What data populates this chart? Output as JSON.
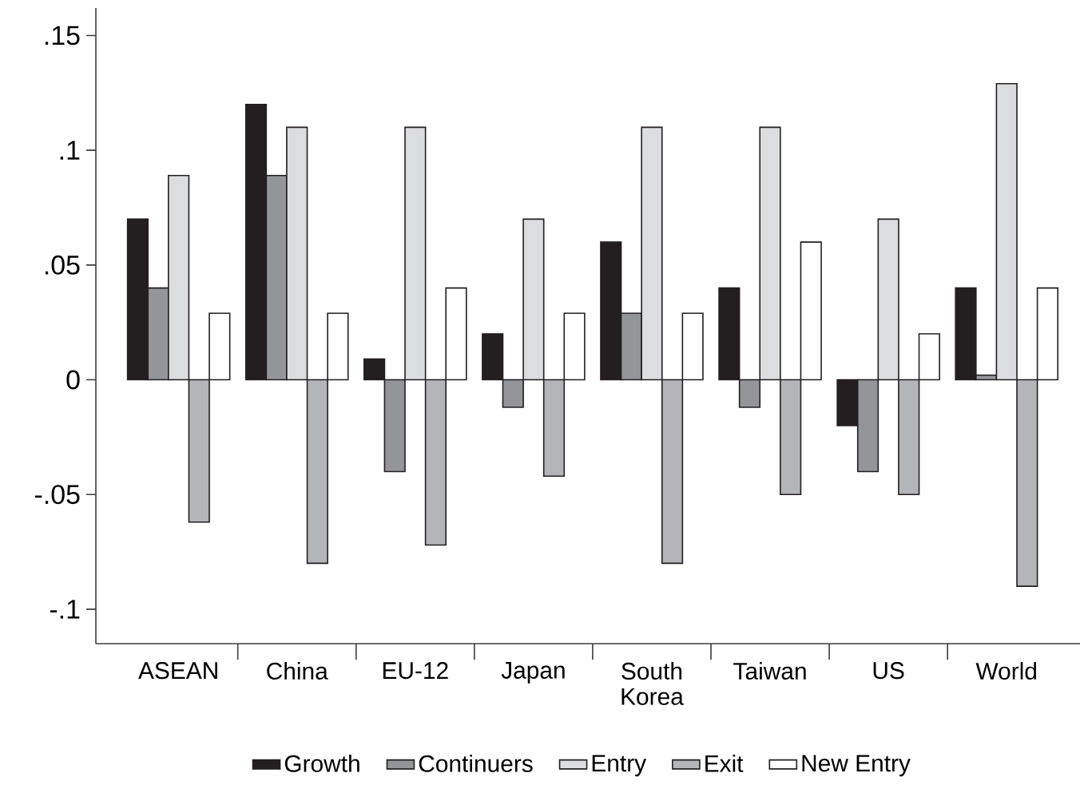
{
  "chart_data": {
    "type": "bar",
    "categories": [
      "ASEAN",
      "China",
      "EU-12",
      "Japan",
      "South Korea",
      "Taiwan",
      "US",
      "World"
    ],
    "series": [
      {
        "name": "Growth",
        "color": "#231f20",
        "values": [
          0.07,
          0.12,
          0.009,
          0.02,
          0.06,
          0.04,
          -0.02,
          0.04
        ]
      },
      {
        "name": "Continuers",
        "color": "#939598",
        "values": [
          0.04,
          0.089,
          -0.04,
          -0.012,
          0.029,
          -0.012,
          -0.04,
          0.002
        ]
      },
      {
        "name": "Entry",
        "color": "#dcdddf",
        "values": [
          0.089,
          0.11,
          0.11,
          0.07,
          0.11,
          0.11,
          0.07,
          0.129
        ]
      },
      {
        "name": "Exit",
        "color": "#b4b5b8",
        "values": [
          -0.062,
          -0.08,
          -0.072,
          -0.042,
          -0.08,
          -0.05,
          -0.05,
          -0.09
        ]
      },
      {
        "name": "New Entry",
        "color": "#ffffff",
        "values": [
          0.029,
          0.029,
          0.04,
          0.029,
          0.029,
          0.06,
          0.02,
          0.04
        ]
      }
    ],
    "ylim": [
      -0.115,
      0.162
    ],
    "yticks": [
      {
        "value": -0.1,
        "label": "-.1"
      },
      {
        "value": -0.05,
        "label": "-.05"
      },
      {
        "value": 0,
        "label": "0"
      },
      {
        "value": 0.05,
        "label": ".05"
      },
      {
        "value": 0.1,
        "label": ".1"
      },
      {
        "value": 0.15,
        "label": ".15"
      }
    ],
    "legend": "bottom"
  }
}
